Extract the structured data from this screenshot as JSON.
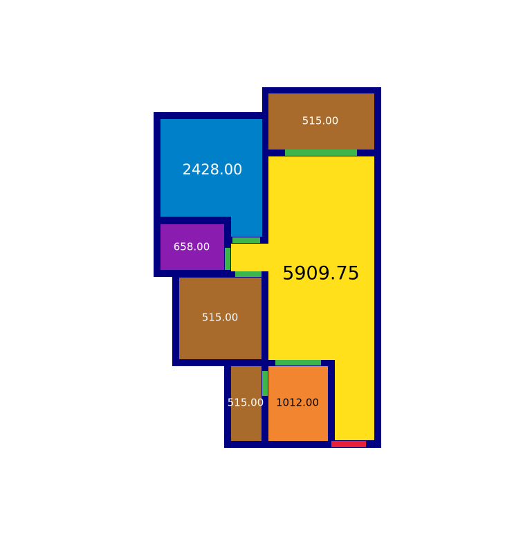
{
  "colors": {
    "wall": "#000080",
    "door": "#3db54a",
    "entrance": "#e8213a",
    "living": "#ffe01a",
    "bedroom_blue": "#0080c8",
    "bedroom_purple": "#8b1cb0",
    "room_brown": "#a86b2c",
    "kitchen_orange": "#f28530",
    "label_dark": "#000000",
    "label_light": "#ffffff"
  },
  "rooms": {
    "living": {
      "area": "5909.75",
      "color": "#ffe01a"
    },
    "top_right": {
      "area": "515.00",
      "color": "#a86b2c"
    },
    "bedroom_left_top": {
      "area": "2428.00",
      "color": "#0080c8"
    },
    "bedroom_left_small": {
      "area": "658.00",
      "color": "#8b1cb0"
    },
    "middle_left": {
      "area": "515.00",
      "color": "#a86b2c"
    },
    "bottom_small": {
      "area": "515.00",
      "color": "#a86b2c"
    },
    "kitchen": {
      "area": "1012.00",
      "color": "#f28530"
    }
  }
}
